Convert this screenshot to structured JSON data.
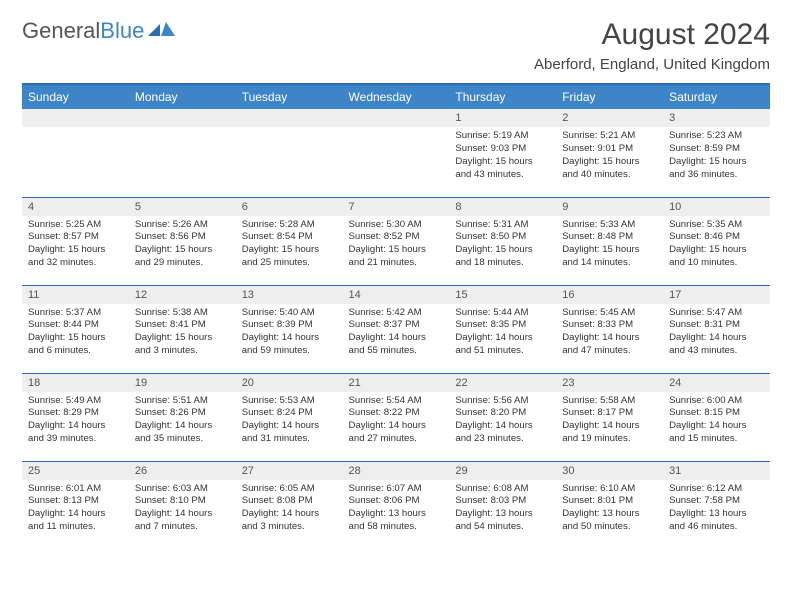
{
  "brand": {
    "part1": "General",
    "part2": "Blue"
  },
  "title": "August 2024",
  "location": "Aberford, England, United Kingdom",
  "theme": {
    "header_bg": "#3d85c6",
    "header_text": "#ffffff",
    "border_color": "#2a6db3",
    "daynum_bg": "#eeeeee",
    "body_text": "#333333",
    "title_fontsize": 30,
    "location_fontsize": 15,
    "dayhdr_fontsize": 12,
    "cell_fontsize": 9.6
  },
  "day_headers": [
    "Sunday",
    "Monday",
    "Tuesday",
    "Wednesday",
    "Thursday",
    "Friday",
    "Saturday"
  ],
  "weeks": [
    [
      null,
      null,
      null,
      null,
      {
        "n": "1",
        "sunrise": "5:19 AM",
        "sunset": "9:03 PM",
        "daylight": "15 hours and 43 minutes."
      },
      {
        "n": "2",
        "sunrise": "5:21 AM",
        "sunset": "9:01 PM",
        "daylight": "15 hours and 40 minutes."
      },
      {
        "n": "3",
        "sunrise": "5:23 AM",
        "sunset": "8:59 PM",
        "daylight": "15 hours and 36 minutes."
      }
    ],
    [
      {
        "n": "4",
        "sunrise": "5:25 AM",
        "sunset": "8:57 PM",
        "daylight": "15 hours and 32 minutes."
      },
      {
        "n": "5",
        "sunrise": "5:26 AM",
        "sunset": "8:56 PM",
        "daylight": "15 hours and 29 minutes."
      },
      {
        "n": "6",
        "sunrise": "5:28 AM",
        "sunset": "8:54 PM",
        "daylight": "15 hours and 25 minutes."
      },
      {
        "n": "7",
        "sunrise": "5:30 AM",
        "sunset": "8:52 PM",
        "daylight": "15 hours and 21 minutes."
      },
      {
        "n": "8",
        "sunrise": "5:31 AM",
        "sunset": "8:50 PM",
        "daylight": "15 hours and 18 minutes."
      },
      {
        "n": "9",
        "sunrise": "5:33 AM",
        "sunset": "8:48 PM",
        "daylight": "15 hours and 14 minutes."
      },
      {
        "n": "10",
        "sunrise": "5:35 AM",
        "sunset": "8:46 PM",
        "daylight": "15 hours and 10 minutes."
      }
    ],
    [
      {
        "n": "11",
        "sunrise": "5:37 AM",
        "sunset": "8:44 PM",
        "daylight": "15 hours and 6 minutes."
      },
      {
        "n": "12",
        "sunrise": "5:38 AM",
        "sunset": "8:41 PM",
        "daylight": "15 hours and 3 minutes."
      },
      {
        "n": "13",
        "sunrise": "5:40 AM",
        "sunset": "8:39 PM",
        "daylight": "14 hours and 59 minutes."
      },
      {
        "n": "14",
        "sunrise": "5:42 AM",
        "sunset": "8:37 PM",
        "daylight": "14 hours and 55 minutes."
      },
      {
        "n": "15",
        "sunrise": "5:44 AM",
        "sunset": "8:35 PM",
        "daylight": "14 hours and 51 minutes."
      },
      {
        "n": "16",
        "sunrise": "5:45 AM",
        "sunset": "8:33 PM",
        "daylight": "14 hours and 47 minutes."
      },
      {
        "n": "17",
        "sunrise": "5:47 AM",
        "sunset": "8:31 PM",
        "daylight": "14 hours and 43 minutes."
      }
    ],
    [
      {
        "n": "18",
        "sunrise": "5:49 AM",
        "sunset": "8:29 PM",
        "daylight": "14 hours and 39 minutes."
      },
      {
        "n": "19",
        "sunrise": "5:51 AM",
        "sunset": "8:26 PM",
        "daylight": "14 hours and 35 minutes."
      },
      {
        "n": "20",
        "sunrise": "5:53 AM",
        "sunset": "8:24 PM",
        "daylight": "14 hours and 31 minutes."
      },
      {
        "n": "21",
        "sunrise": "5:54 AM",
        "sunset": "8:22 PM",
        "daylight": "14 hours and 27 minutes."
      },
      {
        "n": "22",
        "sunrise": "5:56 AM",
        "sunset": "8:20 PM",
        "daylight": "14 hours and 23 minutes."
      },
      {
        "n": "23",
        "sunrise": "5:58 AM",
        "sunset": "8:17 PM",
        "daylight": "14 hours and 19 minutes."
      },
      {
        "n": "24",
        "sunrise": "6:00 AM",
        "sunset": "8:15 PM",
        "daylight": "14 hours and 15 minutes."
      }
    ],
    [
      {
        "n": "25",
        "sunrise": "6:01 AM",
        "sunset": "8:13 PM",
        "daylight": "14 hours and 11 minutes."
      },
      {
        "n": "26",
        "sunrise": "6:03 AM",
        "sunset": "8:10 PM",
        "daylight": "14 hours and 7 minutes."
      },
      {
        "n": "27",
        "sunrise": "6:05 AM",
        "sunset": "8:08 PM",
        "daylight": "14 hours and 3 minutes."
      },
      {
        "n": "28",
        "sunrise": "6:07 AM",
        "sunset": "8:06 PM",
        "daylight": "13 hours and 58 minutes."
      },
      {
        "n": "29",
        "sunrise": "6:08 AM",
        "sunset": "8:03 PM",
        "daylight": "13 hours and 54 minutes."
      },
      {
        "n": "30",
        "sunrise": "6:10 AM",
        "sunset": "8:01 PM",
        "daylight": "13 hours and 50 minutes."
      },
      {
        "n": "31",
        "sunrise": "6:12 AM",
        "sunset": "7:58 PM",
        "daylight": "13 hours and 46 minutes."
      }
    ]
  ],
  "labels": {
    "sunrise": "Sunrise:",
    "sunset": "Sunset:",
    "daylight": "Daylight:"
  }
}
